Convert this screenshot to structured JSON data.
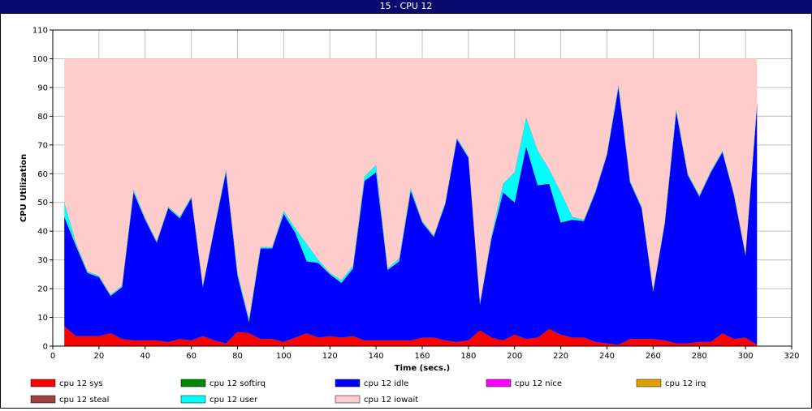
{
  "window": {
    "title": "15 - CPU 12"
  },
  "chart_data": {
    "type": "area",
    "stacked": true,
    "title": "15 - CPU 12",
    "xlabel": "Time (secs.)",
    "ylabel": "CPU Utilization",
    "xlim": [
      0,
      320
    ],
    "ylim": [
      0,
      110
    ],
    "xticks": [
      0,
      20,
      40,
      60,
      80,
      100,
      120,
      140,
      160,
      180,
      200,
      220,
      240,
      260,
      280,
      300,
      320
    ],
    "yticks": [
      0,
      10,
      20,
      30,
      40,
      50,
      60,
      70,
      80,
      90,
      100,
      110
    ],
    "grid": true,
    "legend_position": "bottom",
    "x": [
      5,
      10,
      15,
      20,
      25,
      30,
      35,
      40,
      45,
      50,
      55,
      60,
      65,
      70,
      75,
      80,
      85,
      90,
      95,
      100,
      105,
      110,
      115,
      120,
      125,
      130,
      135,
      140,
      145,
      150,
      155,
      160,
      165,
      170,
      175,
      180,
      185,
      190,
      195,
      200,
      205,
      210,
      215,
      220,
      225,
      230,
      235,
      240,
      245,
      250,
      255,
      260,
      265,
      270,
      275,
      280,
      285,
      290,
      295,
      300,
      305
    ],
    "series": [
      {
        "name": "cpu 12 sys",
        "color": "#ff0000",
        "values": [
          7,
          3.5,
          3.5,
          3.5,
          4.5,
          2.5,
          2,
          2,
          2,
          1.5,
          2.5,
          2,
          3.5,
          2,
          1,
          5,
          4.5,
          2.5,
          2.5,
          1.5,
          3,
          4.5,
          3,
          3.5,
          3,
          3.5,
          2,
          2,
          2,
          2,
          2,
          3,
          3,
          2,
          1.5,
          2,
          5.5,
          3,
          2,
          4,
          2.5,
          3,
          6,
          4,
          3,
          3,
          1.5,
          1,
          0.5,
          2.5,
          2.5,
          2.5,
          2,
          1,
          1,
          1.5,
          1.5,
          4.5,
          2.5,
          3,
          0.5
        ]
      },
      {
        "name": "cpu 12 softirq",
        "color": "#008a00",
        "values": [
          0,
          0,
          0,
          0,
          0,
          0,
          0,
          0,
          0,
          0,
          0,
          0,
          0,
          0,
          0,
          0,
          0,
          0,
          0,
          0,
          0,
          0,
          0,
          0,
          0,
          0,
          0,
          0,
          0,
          0,
          0,
          0,
          0,
          0,
          0,
          0,
          0,
          0,
          0,
          0,
          0,
          0,
          0,
          0,
          0,
          0,
          0,
          0,
          0,
          0,
          0,
          0,
          0,
          0,
          0,
          0,
          0,
          0,
          0,
          0,
          0
        ]
      },
      {
        "name": "cpu 12 idle",
        "color": "#0000ff",
        "values": [
          38,
          31.5,
          22,
          20.5,
          13,
          18,
          51.5,
          42,
          34,
          46.5,
          42,
          49.5,
          17,
          39,
          59.5,
          19.5,
          4,
          31.5,
          31.5,
          44.5,
          36.5,
          25,
          26,
          21.5,
          19,
          23.5,
          55.5,
          58.5,
          24.5,
          27.5,
          52,
          40,
          35,
          47.5,
          70.5,
          63.5,
          9,
          34.5,
          51.5,
          46,
          67,
          53,
          50.5,
          39,
          41,
          40.5,
          52,
          65.5,
          89.5,
          54.5,
          45.5,
          16.5,
          40.5,
          80.5,
          58.5,
          50.5,
          59,
          63,
          50,
          28.5,
          83
        ]
      },
      {
        "name": "cpu 12 nice",
        "color": "#ff00ff",
        "values": [
          0,
          0,
          0,
          0,
          0,
          0,
          0,
          0,
          0,
          0,
          0,
          0,
          0,
          0,
          0,
          0,
          0,
          0,
          0,
          0,
          0,
          0,
          0,
          0,
          0,
          0,
          0,
          0,
          0,
          0,
          0,
          0,
          0,
          0,
          0,
          0,
          0,
          0,
          0,
          0,
          0,
          0,
          0,
          0,
          0,
          0,
          0,
          0,
          0,
          0,
          0,
          0,
          0,
          0,
          0,
          0,
          0,
          0,
          0,
          0,
          0
        ]
      },
      {
        "name": "cpu 12 irq",
        "color": "#e0a000",
        "values": [
          0,
          0,
          0,
          0,
          0,
          0,
          0,
          0,
          0,
          0,
          0,
          0,
          0,
          0,
          0,
          0,
          0,
          0,
          0,
          0,
          0,
          0,
          0,
          0,
          0,
          0,
          0,
          0,
          0,
          0,
          0,
          0,
          0,
          0,
          0,
          0,
          0,
          0,
          0,
          0,
          0,
          0,
          0,
          0,
          0,
          0,
          0,
          0,
          0,
          0,
          0,
          0,
          0,
          0,
          0,
          0,
          0,
          0,
          0,
          0,
          0
        ]
      },
      {
        "name": "cpu 12 steal",
        "color": "#a04040",
        "values": [
          0,
          0,
          0,
          0,
          0,
          0,
          0,
          0,
          0,
          0,
          0,
          0,
          0,
          0,
          0,
          0,
          0,
          0,
          0,
          0,
          0,
          0,
          0,
          0,
          0,
          0,
          0,
          0,
          0,
          0,
          0,
          0,
          0,
          0,
          0,
          0,
          0,
          0,
          0,
          0,
          0,
          0,
          0,
          0,
          0,
          0,
          0,
          0,
          0,
          0,
          0,
          0,
          0,
          0,
          0,
          0,
          0,
          0,
          0,
          0,
          0
        ]
      },
      {
        "name": "cpu 12 user",
        "color": "#00ffff",
        "values": [
          5,
          1,
          0.5,
          0.5,
          0.5,
          0.5,
          1,
          0.5,
          0.5,
          0.5,
          0.5,
          0.5,
          0.5,
          0.5,
          1,
          1,
          1,
          0.5,
          0.5,
          1,
          1.5,
          6,
          1,
          0.5,
          1,
          1,
          1.5,
          2.5,
          0.5,
          1,
          1,
          0.5,
          0.5,
          0.5,
          0.5,
          0.5,
          0.5,
          1,
          3,
          10.5,
          10,
          12,
          5,
          10.5,
          1,
          0.5,
          0.5,
          0.5,
          1,
          0.5,
          0.5,
          0.5,
          0.5,
          1,
          0.5,
          0.5,
          0.5,
          0.5,
          0.5,
          0.5,
          1
        ]
      },
      {
        "name": "cpu 12 iowait",
        "color": "#ffcccc",
        "values": [
          50,
          64,
          74,
          75.5,
          82,
          79,
          45.5,
          55.5,
          63.5,
          51.5,
          55,
          48,
          79,
          58.5,
          38.5,
          74.5,
          90.5,
          65.5,
          65.5,
          53,
          59,
          64.5,
          70,
          74.5,
          77,
          72,
          41,
          37,
          73,
          69.5,
          45,
          56.5,
          61.5,
          50,
          27.5,
          34,
          85,
          61.5,
          43.5,
          39.5,
          20.5,
          32,
          38.5,
          46.5,
          55,
          56,
          46,
          33,
          9,
          42.5,
          51.5,
          80.5,
          57,
          17.5,
          40,
          47.5,
          39,
          32,
          47,
          68,
          15.5
        ]
      }
    ]
  }
}
